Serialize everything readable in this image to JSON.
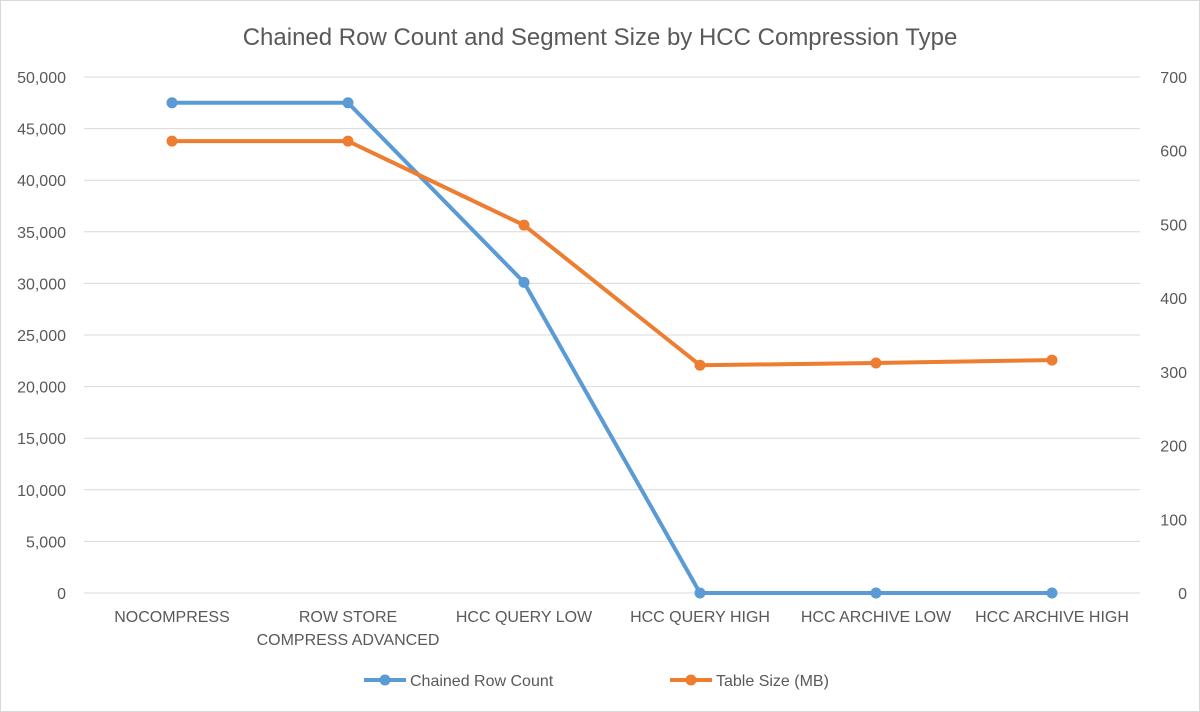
{
  "chart_data": {
    "type": "line",
    "title": "Chained Row Count and Segment Size by HCC Compression Type",
    "categories": [
      [
        "NOCOMPRESS"
      ],
      [
        "ROW STORE",
        "COMPRESS ADVANCED"
      ],
      [
        "HCC QUERY LOW"
      ],
      [
        "HCC QUERY HIGH"
      ],
      [
        "HCC ARCHIVE LOW"
      ],
      [
        "HCC ARCHIVE HIGH"
      ]
    ],
    "y_left": {
      "range": [
        0,
        50000
      ],
      "ticks": [
        0,
        5000,
        10000,
        15000,
        20000,
        25000,
        30000,
        35000,
        40000,
        45000,
        50000
      ],
      "tick_labels": [
        "0",
        "5,000",
        "10,000",
        "15,000",
        "20,000",
        "25,000",
        "30,000",
        "35,000",
        "40,000",
        "45,000",
        "50,000"
      ]
    },
    "y_right": {
      "range": [
        0,
        700
      ],
      "ticks": [
        0,
        100,
        200,
        300,
        400,
        500,
        600,
        700
      ],
      "tick_labels": [
        "0",
        "100",
        "200",
        "300",
        "400",
        "500",
        "600",
        "700"
      ]
    },
    "grid": true,
    "legend_position": "bottom",
    "series": [
      {
        "name": "Chained Row Count",
        "axis": "left",
        "color": "#5b9bd5",
        "values": [
          47500,
          47500,
          30100,
          0,
          0,
          0
        ]
      },
      {
        "name": "Table Size (MB)",
        "axis": "right",
        "color": "#ed7d31",
        "values": [
          613,
          613,
          499,
          309,
          312,
          316
        ]
      }
    ]
  }
}
